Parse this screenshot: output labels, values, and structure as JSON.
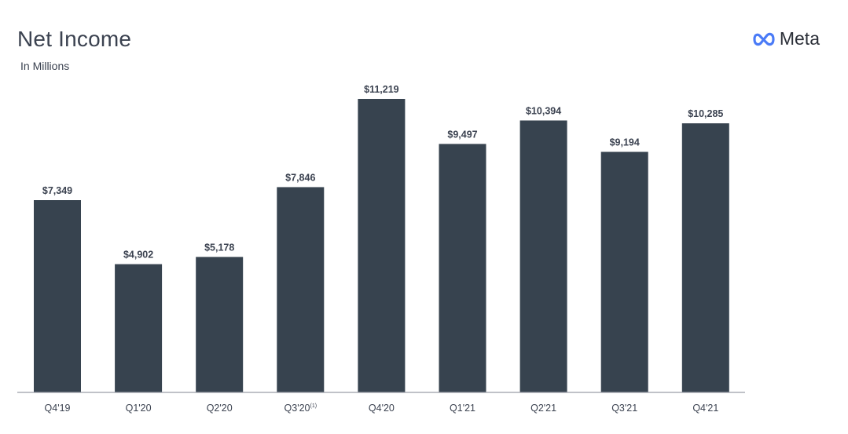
{
  "header": {
    "title": "Net Income",
    "subtitle": "In Millions",
    "brand": "Meta",
    "brand_icon": "meta-infinity-logo"
  },
  "colors": {
    "bar": "#37434f",
    "axis": "#9a9ea6",
    "text": "#3b4250",
    "logo": "#4a7bf7"
  },
  "chart_data": {
    "type": "bar",
    "title": "Net Income",
    "subtitle": "In Millions",
    "categories": [
      "Q4'19",
      "Q1'20",
      "Q2'20",
      "Q3'20",
      "Q4'20",
      "Q1'21",
      "Q2'21",
      "Q3'21",
      "Q4'21"
    ],
    "category_superscripts": [
      "",
      "",
      "",
      "(1)",
      "",
      "",
      "",
      "",
      ""
    ],
    "values": [
      7349,
      4902,
      5178,
      7846,
      11219,
      9497,
      10394,
      9194,
      10285
    ],
    "value_labels": [
      "$7,349",
      "$4,902",
      "$5,178",
      "$7,846",
      "$11,219",
      "$9,497",
      "$10,394",
      "$9,194",
      "$10,285"
    ],
    "xlabel": "",
    "ylabel": "",
    "ylim": [
      0,
      11219
    ],
    "grid": false,
    "legend": "none"
  }
}
